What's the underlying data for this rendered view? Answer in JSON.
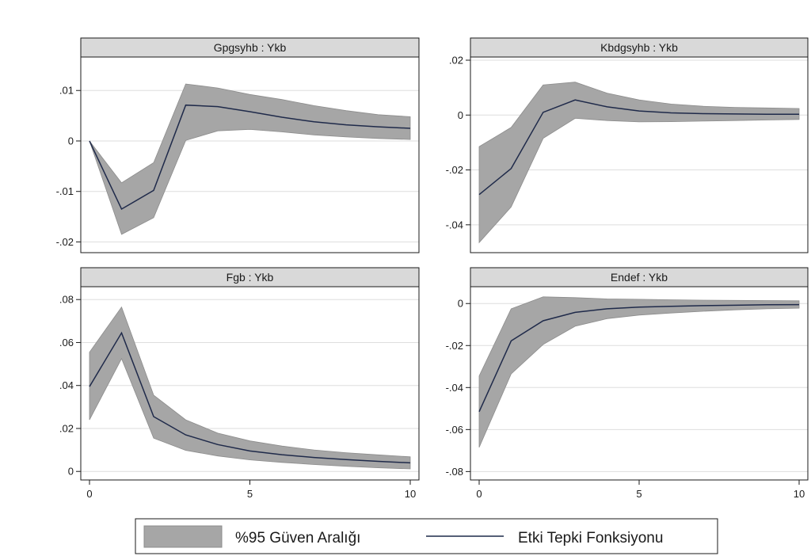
{
  "colors": {
    "band": "#a6a6a6",
    "band_edge": "#8c8c8c",
    "line": "#1f2a4a",
    "grid": "#dedede",
    "header": "#d9d9d9",
    "frame": "#1a1a1a"
  },
  "legend": {
    "band_label": "%95 Güven Aralığı",
    "line_label": "Etki Tepki Fonksiyonu"
  },
  "chart_data": [
    {
      "type": "area",
      "title": "Gpgsyhb : Ykb",
      "x": [
        0,
        1,
        2,
        3,
        4,
        5,
        6,
        7,
        8,
        9,
        10
      ],
      "xlim": [
        0,
        10
      ],
      "xticks": [
        "0",
        "5",
        "10"
      ],
      "ylim": [
        -0.0215,
        0.016
      ],
      "yticks": [
        -0.02,
        -0.01,
        0,
        0.01
      ],
      "ytick_labels": [
        "-.02",
        "-.01",
        "0",
        ".01"
      ],
      "show_x_ticks": false,
      "series": [
        {
          "values": [
            0,
            -0.0135,
            -0.0098,
            0.0071,
            0.0068,
            0.0058,
            0.0047,
            0.0038,
            0.0032,
            0.0028,
            0.0025
          ]
        },
        {
          "role": "band",
          "lower": [
            0,
            -0.0185,
            -0.0152,
            0.0001,
            0.002,
            0.0023,
            0.0018,
            0.0012,
            0.0008,
            0.0005,
            0.0003
          ],
          "upper": [
            0,
            -0.0083,
            -0.0043,
            0.0113,
            0.0105,
            0.0092,
            0.0082,
            0.007,
            0.006,
            0.0052,
            0.0048
          ]
        }
      ]
    },
    {
      "type": "area",
      "title": "Kbdgsyhb : Ykb",
      "x": [
        0,
        1,
        2,
        3,
        4,
        5,
        6,
        7,
        8,
        9,
        10
      ],
      "xlim": [
        0,
        10
      ],
      "xticks": [
        "0",
        "5",
        "10"
      ],
      "ylim": [
        -0.049,
        0.02
      ],
      "yticks": [
        -0.04,
        -0.02,
        0,
        0.02
      ],
      "ytick_labels": [
        "-.04",
        "-.02",
        "0",
        ".02"
      ],
      "show_x_ticks": false,
      "series": [
        {
          "values": [
            -0.029,
            -0.0195,
            0.001,
            0.0055,
            0.003,
            0.0015,
            0.0008,
            0.0005,
            0.0004,
            0.0003,
            0.0003
          ]
        },
        {
          "role": "band",
          "lower": [
            -0.0465,
            -0.0335,
            -0.0085,
            -0.0012,
            -0.002,
            -0.0025,
            -0.0024,
            -0.0022,
            -0.002,
            -0.0018,
            -0.0016
          ],
          "upper": [
            -0.0115,
            -0.0045,
            0.011,
            0.012,
            0.008,
            0.0055,
            0.004,
            0.0032,
            0.0028,
            0.0026,
            0.0024
          ]
        }
      ]
    },
    {
      "type": "area",
      "title": "Fgb : Ykb",
      "x": [
        0,
        1,
        2,
        3,
        4,
        5,
        6,
        7,
        8,
        9,
        10
      ],
      "xlim": [
        0,
        10
      ],
      "xticks": [
        "0",
        "5",
        "10"
      ],
      "ylim": [
        -0.0025,
        0.0845
      ],
      "yticks": [
        0,
        0.02,
        0.04,
        0.06,
        0.08
      ],
      "ytick_labels": [
        "0",
        ".02",
        ".04",
        ".06",
        ".08"
      ],
      "show_x_ticks": true,
      "series": [
        {
          "values": [
            0.0395,
            0.0645,
            0.0255,
            0.017,
            0.0125,
            0.0095,
            0.0078,
            0.0065,
            0.0055,
            0.0047,
            0.004
          ]
        },
        {
          "role": "band",
          "lower": [
            0.024,
            0.0525,
            0.0155,
            0.0098,
            0.0072,
            0.0054,
            0.0042,
            0.0032,
            0.0024,
            0.0017,
            0.0012
          ],
          "upper": [
            0.0555,
            0.0765,
            0.0355,
            0.024,
            0.0178,
            0.0142,
            0.0118,
            0.01,
            0.0087,
            0.0077,
            0.0068
          ]
        }
      ]
    },
    {
      "type": "area",
      "title": "Endef : Ykb",
      "x": [
        0,
        1,
        2,
        3,
        4,
        5,
        6,
        7,
        8,
        9,
        10
      ],
      "xlim": [
        0,
        10
      ],
      "xticks": [
        "0",
        "5",
        "10"
      ],
      "ylim": [
        -0.0825,
        0.0065
      ],
      "yticks": [
        -0.08,
        -0.06,
        -0.04,
        -0.02,
        0
      ],
      "ytick_labels": [
        "-.08",
        "-.06",
        "-.04",
        "-.02",
        "0"
      ],
      "show_x_ticks": true,
      "series": [
        {
          "values": [
            -0.0515,
            -0.0178,
            -0.0082,
            -0.0042,
            -0.0025,
            -0.0017,
            -0.0013,
            -0.001,
            -0.0008,
            -0.0006,
            -0.0005
          ]
        },
        {
          "role": "band",
          "lower": [
            -0.0685,
            -0.0335,
            -0.0195,
            -0.0108,
            -0.0072,
            -0.0055,
            -0.0045,
            -0.0037,
            -0.003,
            -0.0025,
            -0.0022
          ],
          "upper": [
            -0.0345,
            -0.0025,
            0.0032,
            0.0028,
            0.0022,
            0.002,
            0.0018,
            0.0016,
            0.0015,
            0.0014,
            0.0013
          ]
        }
      ]
    }
  ]
}
